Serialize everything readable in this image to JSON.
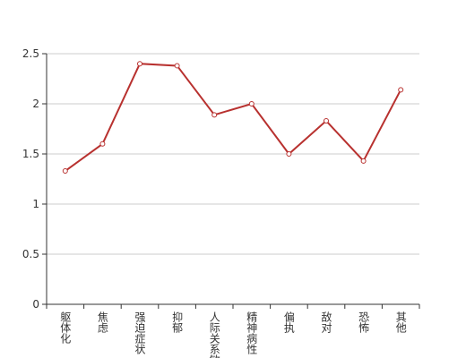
{
  "chart_data": {
    "type": "line",
    "categories": [
      "躯体化",
      "焦虑",
      "强迫症状",
      "抑郁",
      "人际关系敏感",
      "精神病性",
      "偏执",
      "敌对",
      "恐怖",
      "其他"
    ],
    "values": [
      1.33,
      1.6,
      2.4,
      2.38,
      1.89,
      2.0,
      1.5,
      1.83,
      1.43,
      2.14
    ],
    "color": "#b8312f",
    "ylim": [
      0,
      2.5
    ],
    "yticks": [
      0,
      0.5,
      1,
      1.5,
      2,
      2.5
    ],
    "grid": true
  }
}
